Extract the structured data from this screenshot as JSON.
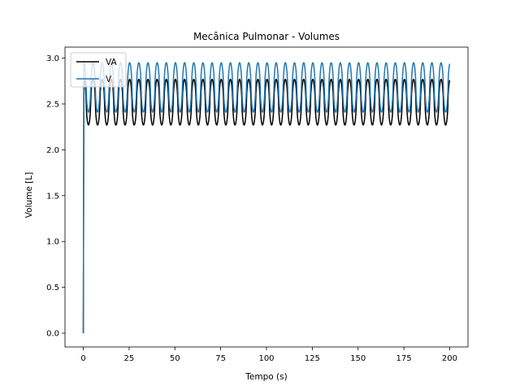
{
  "chart_data": {
    "type": "line",
    "title": "Mecânica Pulmonar - Volumes",
    "xlabel": "Tempo (s)",
    "ylabel": "Volume [L]",
    "xlim": [
      -10,
      210
    ],
    "ylim": [
      -0.15,
      3.12
    ],
    "xticks": [
      0,
      25,
      50,
      75,
      100,
      125,
      150,
      175,
      200
    ],
    "yticks": [
      0.0,
      0.5,
      1.0,
      1.5,
      2.0,
      2.5,
      3.0
    ],
    "ytick_labels": [
      "0.0",
      "0.5",
      "1.0",
      "1.5",
      "2.0",
      "2.5",
      "3.0"
    ],
    "legend_position": "top-left",
    "grid": false,
    "series": [
      {
        "name": "VA",
        "color": "#000000",
        "start": [
          0,
          0.0
        ],
        "waveform": {
          "period_s": 5,
          "cycles": 40,
          "end_s": 200,
          "min": 2.27,
          "max": 2.77,
          "start_s": 0.3
        }
      },
      {
        "name": "V",
        "color": "#1f77b4",
        "start": [
          0,
          0.0
        ],
        "waveform": {
          "period_s": 5,
          "cycles": 40,
          "end_s": 200,
          "min": 2.41,
          "max": 2.95,
          "start_s": 0.3
        }
      }
    ]
  }
}
